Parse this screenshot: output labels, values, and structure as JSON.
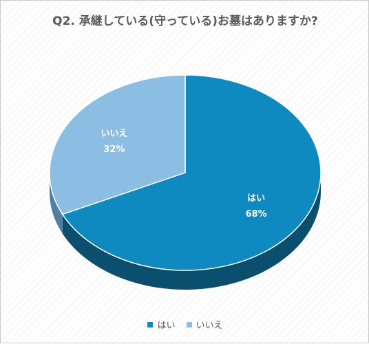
{
  "chart_data": {
    "type": "pie",
    "title": "Q2. 承継している(守っている)お墓はありますか?",
    "slices": [
      {
        "label": "はい",
        "value": 68,
        "value_label": "68%",
        "color": "#0f8ac0",
        "side_color": "#0b4f6e"
      },
      {
        "label": "いいえ",
        "value": 32,
        "value_label": "32%",
        "color": "#8cbde3",
        "side_color": "#4f7fa3"
      }
    ],
    "legend_position": "bottom",
    "style": "3d"
  }
}
